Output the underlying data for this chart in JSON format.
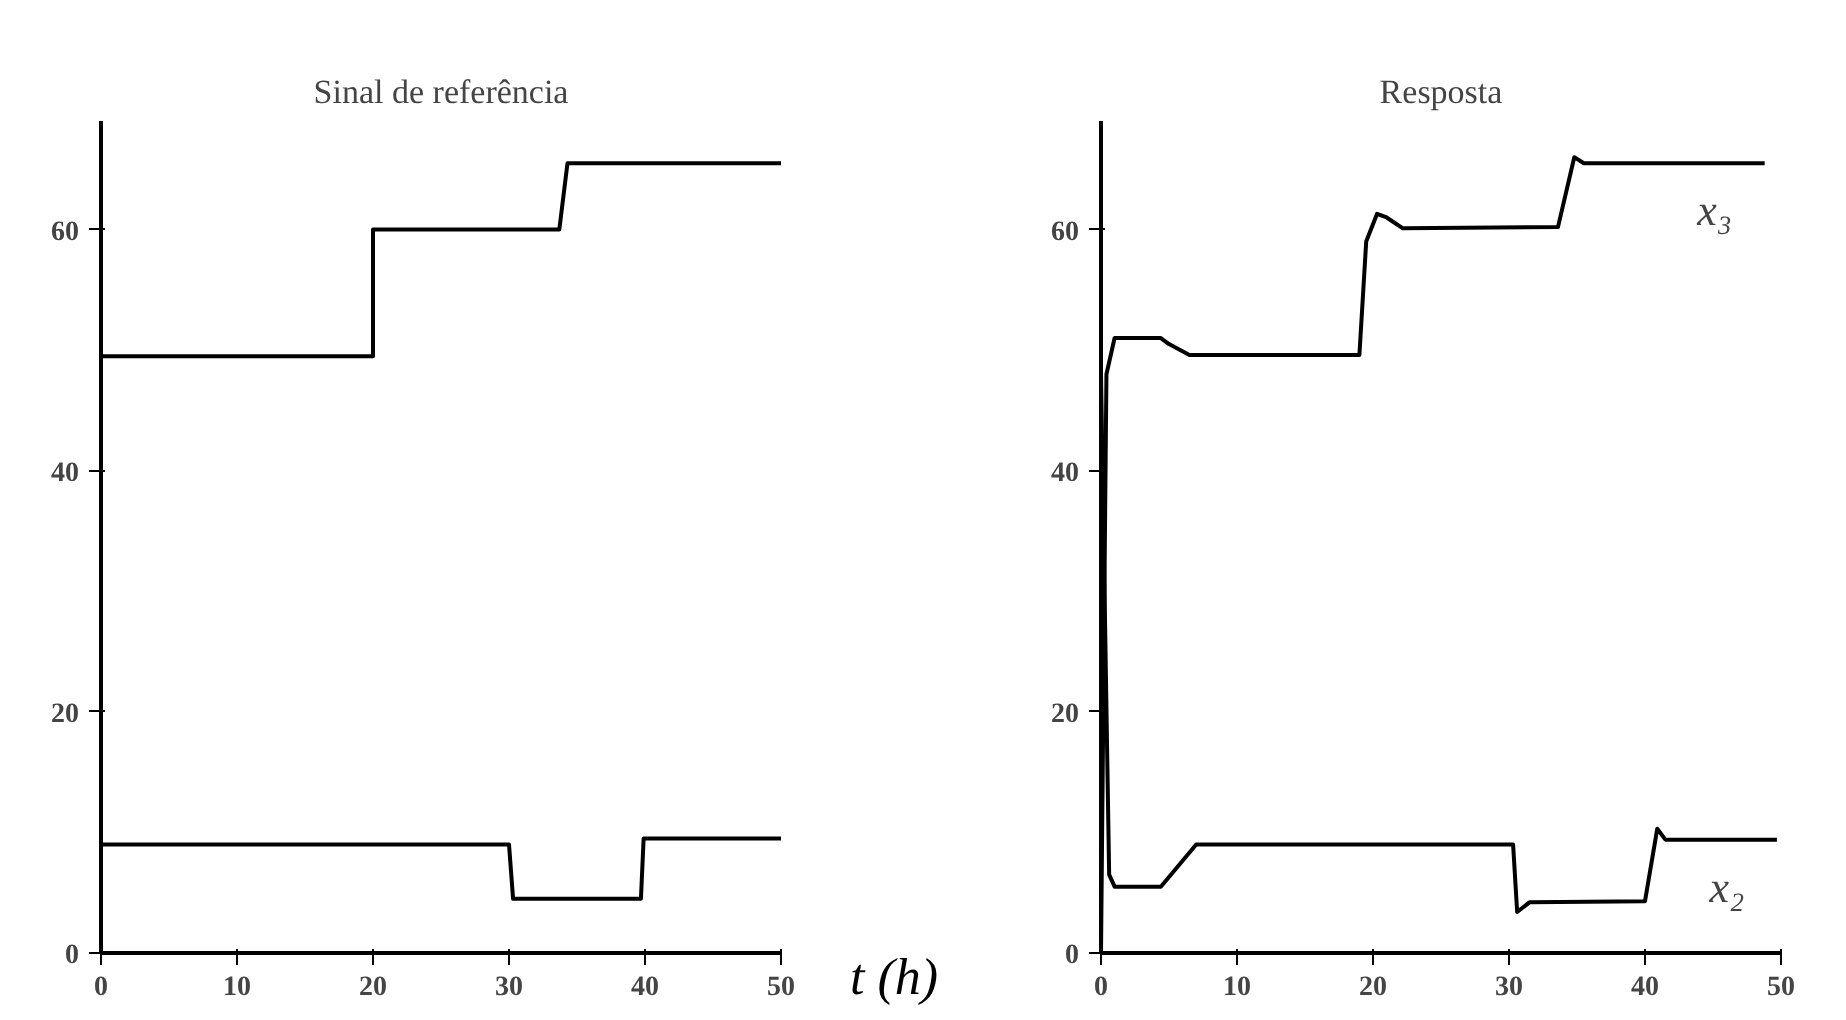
{
  "chart_data": [
    {
      "type": "line",
      "title": "Sinal de referência",
      "xlabel": "t (h)",
      "xlim": [
        0,
        50
      ],
      "ylim": [
        0,
        69
      ],
      "xticks": [
        0,
        10,
        20,
        30,
        40,
        50
      ],
      "yticks": [
        0,
        20,
        40,
        60
      ],
      "grid": false,
      "line_style": "solid",
      "series": [
        {
          "color": "#000000",
          "x": [
            0,
            20,
            20,
            33.7,
            34.3,
            50
          ],
          "values": [
            49.5,
            49.5,
            60,
            60,
            65.5,
            65.5
          ]
        },
        {
          "color": "#000000",
          "x": [
            0,
            30,
            30.3,
            39.7,
            39.9,
            50
          ],
          "values": [
            9,
            9,
            4.5,
            4.5,
            9.5,
            9.5
          ]
        }
      ]
    },
    {
      "type": "line",
      "title": "Resposta",
      "xlim": [
        0,
        50
      ],
      "ylim": [
        0,
        69
      ],
      "xticks": [
        0,
        10,
        20,
        30,
        40,
        50
      ],
      "yticks": [
        0,
        20,
        40,
        60
      ],
      "grid": false,
      "line_style": "solid",
      "series": [
        {
          "name": "x₃",
          "color": "#000000",
          "x": [
            0,
            0.4,
            1,
            4.4,
            5,
            6.5,
            19,
            19.5,
            20.3,
            21,
            22.2,
            33.6,
            34.8,
            35.5,
            48.8
          ],
          "values": [
            0,
            48,
            51,
            51,
            50.5,
            49.6,
            49.6,
            59,
            61.3,
            61,
            60.1,
            60.2,
            66,
            65.5,
            65.5
          ]
        },
        {
          "name": "x₂",
          "color": "#000000",
          "x": [
            0,
            0.6,
            1,
            4.4,
            7,
            30.3,
            30.6,
            31.5,
            40,
            40.9,
            41.5,
            49.7
          ],
          "values": [
            48,
            6.5,
            5.5,
            5.5,
            9,
            9,
            3.4,
            4.2,
            4.3,
            10.3,
            9.4,
            9.4
          ]
        }
      ]
    }
  ]
}
